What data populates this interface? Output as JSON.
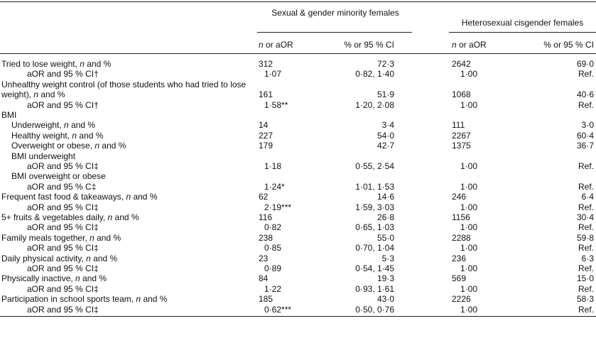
{
  "header": {
    "groups": [
      "Sexual & gender minority females",
      "Heterosexual cisgender females"
    ],
    "columns": [
      "n or aOR",
      "% or 95 % CI",
      "n or aOR",
      "% or 95 % CI"
    ]
  },
  "rows": [
    {
      "label": "Tried to lose weight, n and %",
      "cells": [
        "312",
        "72·3",
        "2642",
        "69·0"
      ],
      "aor": {
        "label": "aOR and 95 % CI†",
        "cells": [
          "1·07",
          "0·82, 1·40",
          "1·00",
          "Ref."
        ]
      }
    },
    {
      "label": "Unhealthy weight control (of those students who had tried to lose weight), n and %",
      "cells": [
        "161",
        "51·9",
        "1068",
        "40·6"
      ],
      "aor": {
        "label": "aOR and 95 % CI†",
        "cells": [
          "1·58**",
          "1·20, 2·08",
          "1·00",
          "Ref."
        ]
      }
    },
    {
      "label": "BMI",
      "rows": [
        {
          "label": "Underweight, n and %",
          "cells": [
            "14",
            "3·4",
            "111",
            "3·0"
          ]
        },
        {
          "label": "Healthy weight, n and %",
          "cells": [
            "227",
            "54·0",
            "2267",
            "60·4"
          ]
        },
        {
          "label": "Overweight or obese, n and %",
          "cells": [
            "179",
            "42·7",
            "1375",
            "36·7"
          ]
        },
        {
          "label": "BMI underweight",
          "aor": {
            "label": "aOR and 95 % CI‡",
            "cells": [
              "1·18",
              "0·55, 2·54",
              "1·00",
              "Ref."
            ]
          }
        },
        {
          "label": "BMI overweight or obese",
          "aor": {
            "label": "aOR and 95 % C‡",
            "cells": [
              "1·24*",
              "1·01, 1·53",
              "1·00",
              "Ref."
            ]
          }
        }
      ]
    },
    {
      "label": "Frequent fast food & takeaways, n and %",
      "cells": [
        "62",
        "14·6",
        "246",
        "6·4"
      ],
      "aor": {
        "label": "aOR and 95 % CI‡",
        "cells": [
          "2·19***",
          "1·59, 3·03",
          "1·00",
          "Ref."
        ]
      }
    },
    {
      "label": "5+ fruits & vegetables daily, n and %",
      "cells": [
        "116",
        "26·8",
        "1156",
        "30·4"
      ],
      "aor": {
        "label": "aOR and 95 % CI‡",
        "cells": [
          "0·82",
          "0·65, 1·03",
          "1·00",
          "Ref."
        ]
      }
    },
    {
      "label": "Family meals together, n and %",
      "cells": [
        "238",
        "55·0",
        "2288",
        "59·8"
      ],
      "aor": {
        "label": "aOR and 95 % CI‡",
        "cells": [
          "0·85",
          "0·70, 1·04",
          "1·00",
          "Ref."
        ]
      }
    },
    {
      "label": "Daily physical activity, n and %",
      "cells": [
        "23",
        "5·3",
        "236",
        "6·3"
      ],
      "aor": {
        "label": "aOR and 95 % CI‡",
        "cells": [
          "0·89",
          "0·54, 1·45",
          "1·00",
          "Ref."
        ]
      }
    },
    {
      "label": "Physically inactive, n and %",
      "cells": [
        "84",
        "19·3",
        "569",
        "15·0"
      ],
      "aor": {
        "label": "aOR and 95 % CI‡",
        "cells": [
          "1·22",
          "0·93, 1·61",
          "1·00",
          "Ref."
        ]
      }
    },
    {
      "label": "Participation in school sports team, n and %",
      "cells": [
        "185",
        "43·0",
        "2226",
        "58·3"
      ],
      "aor": {
        "label": "aOR and 95 % CI‡",
        "cells": [
          "0·62***",
          "0·50, 0·76",
          "1·00",
          "Ref."
        ]
      }
    }
  ]
}
